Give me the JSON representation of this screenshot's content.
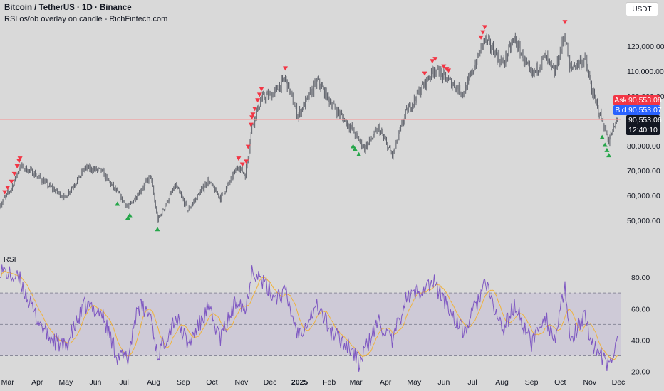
{
  "header": {
    "title": "Bitcoin / TetherUS · 1D · Binance",
    "indicator": "RSI os/ob overlay on candle - RichFintech.com"
  },
  "currency_button": "USDT",
  "price_tags": {
    "ask_label": "Ask",
    "ask_price": "90,553.08",
    "bid_label": "Bid",
    "bid_price": "90,553.07",
    "last_price": "90,553.06",
    "countdown": "12:40:10",
    "ask_color": "#f23645",
    "bid_color": "#2962ff",
    "last_color": "#131722"
  },
  "rsi_pane": {
    "label": "RSI"
  },
  "colors": {
    "candle": "#5d6069",
    "sell_signal": "#f23645",
    "buy_signal": "#26a64a",
    "rsi_line": "#7e57c2",
    "rsi_ma": "#f0b33c",
    "rsi_band": "#c9c3d6",
    "price_line": "#f2a0a0"
  },
  "chart_data": [
    {
      "type": "candlestick",
      "title": "Bitcoin / TetherUS · 1D · Binance",
      "ylim": [
        40000,
        130000
      ],
      "y_ticks": [
        120000,
        110000,
        100000,
        90000,
        80000,
        70000,
        60000,
        50000
      ],
      "y_tick_labels": [
        "120,000.00",
        "110,000.00",
        "100,000.00",
        "90,000.00",
        "80,000.00",
        "70,000.00",
        "60,000.00",
        "50,000.00"
      ],
      "x_tick_labels": [
        "Mar",
        "Apr",
        "May",
        "Jun",
        "Jul",
        "Aug",
        "Sep",
        "Oct",
        "Nov",
        "Dec",
        "2025",
        "Feb",
        "Mar",
        "Apr",
        "May",
        "Jun",
        "Jul",
        "Aug",
        "Sep",
        "Oct",
        "Nov",
        "Dec"
      ],
      "x_range": [
        "2024-03",
        "2025-12"
      ],
      "anchor_closes": [
        [
          "2024-02-22",
          56000
        ],
        [
          "2024-03-05",
          63000
        ],
        [
          "2024-03-14",
          72000
        ],
        [
          "2024-03-28",
          69000
        ],
        [
          "2024-04-13",
          64000
        ],
        [
          "2024-04-30",
          59000
        ],
        [
          "2024-05-21",
          71000
        ],
        [
          "2024-06-07",
          70000
        ],
        [
          "2024-06-24",
          61000
        ],
        [
          "2024-07-05",
          55000
        ],
        [
          "2024-07-29",
          68000
        ],
        [
          "2024-08-05",
          50000
        ],
        [
          "2024-08-24",
          64000
        ],
        [
          "2024-09-06",
          54000
        ],
        [
          "2024-09-27",
          66000
        ],
        [
          "2024-10-10",
          59000
        ],
        [
          "2024-10-29",
          72000
        ],
        [
          "2024-11-05",
          68000
        ],
        [
          "2024-11-12",
          88000
        ],
        [
          "2024-11-22",
          99000
        ],
        [
          "2024-12-05",
          101000
        ],
        [
          "2024-12-17",
          107000
        ],
        [
          "2024-12-30",
          92000
        ],
        [
          "2025-01-20",
          106000
        ],
        [
          "2025-02-03",
          97000
        ],
        [
          "2025-02-24",
          87000
        ],
        [
          "2025-03-10",
          79000
        ],
        [
          "2025-03-25",
          87000
        ],
        [
          "2025-04-08",
          76000
        ],
        [
          "2025-04-22",
          93000
        ],
        [
          "2025-05-22",
          111000
        ],
        [
          "2025-06-22",
          101000
        ],
        [
          "2025-07-14",
          123000
        ],
        [
          "2025-08-02",
          113000
        ],
        [
          "2025-08-14",
          123000
        ],
        [
          "2025-09-01",
          108000
        ],
        [
          "2025-09-15",
          116000
        ],
        [
          "2025-09-25",
          109000
        ],
        [
          "2025-10-06",
          125000
        ],
        [
          "2025-10-11",
          111000
        ],
        [
          "2025-10-27",
          115000
        ],
        [
          "2025-11-04",
          101000
        ],
        [
          "2025-11-21",
          82000
        ],
        [
          "2025-11-30",
          90553
        ]
      ],
      "current_price": 90553.06,
      "sell_signals": [
        "2024-02-27",
        "2024-03-01",
        "2024-03-05",
        "2024-03-08",
        "2024-03-11",
        "2024-03-13",
        "2024-03-14",
        "2024-10-29",
        "2024-11-02",
        "2024-11-06",
        "2024-11-08",
        "2024-11-11",
        "2024-11-12",
        "2024-11-13",
        "2024-11-15",
        "2024-11-18",
        "2024-11-20",
        "2024-11-22",
        "2024-12-17",
        "2025-05-12",
        "2025-05-20",
        "2025-05-23",
        "2025-06-01",
        "2025-06-04",
        "2025-06-06",
        "2025-07-10",
        "2025-07-12",
        "2025-07-14",
        "2025-10-06"
      ],
      "buy_signals": [
        "2024-06-24",
        "2024-07-05",
        "2024-07-07",
        "2024-08-05",
        "2025-02-26",
        "2025-02-28",
        "2025-03-04",
        "2025-11-14",
        "2025-11-17",
        "2025-11-19",
        "2025-11-21"
      ]
    },
    {
      "type": "line",
      "title": "RSI",
      "ylim": [
        18,
        90
      ],
      "y_ticks": [
        80,
        60,
        40,
        20
      ],
      "y_tick_labels": [
        "80.00",
        "60.00",
        "40.00",
        "20.00"
      ],
      "bands": {
        "upper": 70,
        "middle": 50,
        "lower": 30
      },
      "series": [
        {
          "values": [
            [
              "2024-02-22",
              86
            ],
            [
              "2024-03-01",
              82
            ],
            [
              "2024-03-14",
              78
            ],
            [
              "2024-03-28",
              58
            ],
            [
              "2024-04-13",
              42
            ],
            [
              "2024-04-30",
              35
            ],
            [
              "2024-05-21",
              62
            ],
            [
              "2024-06-07",
              58
            ],
            [
              "2024-06-24",
              30
            ],
            [
              "2024-07-05",
              28
            ],
            [
              "2024-07-15",
              62
            ],
            [
              "2024-07-29",
              56
            ],
            [
              "2024-08-05",
              30
            ],
            [
              "2024-08-24",
              55
            ],
            [
              "2024-09-06",
              37
            ],
            [
              "2024-09-27",
              60
            ],
            [
              "2024-10-10",
              41
            ],
            [
              "2024-10-29",
              68
            ],
            [
              "2024-11-05",
              58
            ],
            [
              "2024-11-12",
              86
            ],
            [
              "2024-11-22",
              78
            ],
            [
              "2024-12-05",
              68
            ],
            [
              "2024-12-17",
              70
            ],
            [
              "2024-12-30",
              44
            ],
            [
              "2025-01-20",
              62
            ],
            [
              "2025-02-03",
              45
            ],
            [
              "2025-02-24",
              35
            ],
            [
              "2025-03-04",
              25
            ],
            [
              "2025-03-10",
              33
            ],
            [
              "2025-03-25",
              52
            ],
            [
              "2025-04-08",
              38
            ],
            [
              "2025-04-22",
              66
            ],
            [
              "2025-05-12",
              74
            ],
            [
              "2025-05-22",
              76
            ],
            [
              "2025-06-22",
              44
            ],
            [
              "2025-07-14",
              76
            ],
            [
              "2025-08-02",
              46
            ],
            [
              "2025-08-14",
              62
            ],
            [
              "2025-09-01",
              38
            ],
            [
              "2025-09-15",
              56
            ],
            [
              "2025-09-25",
              40
            ],
            [
              "2025-10-06",
              72
            ],
            [
              "2025-10-11",
              40
            ],
            [
              "2025-10-27",
              54
            ],
            [
              "2025-11-04",
              38
            ],
            [
              "2025-11-21",
              22
            ],
            [
              "2025-11-30",
              40
            ]
          ]
        }
      ]
    }
  ]
}
